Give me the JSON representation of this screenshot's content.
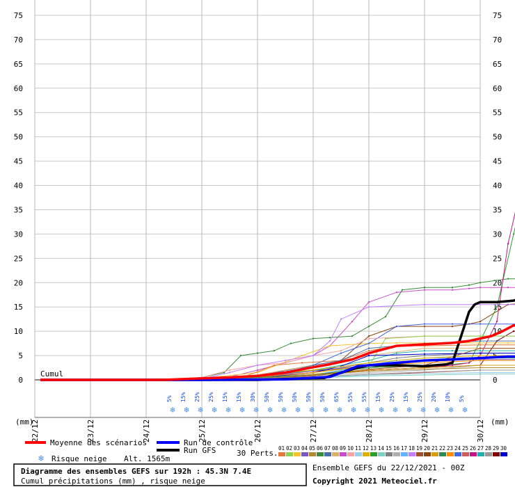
{
  "chart_data": {
    "type": "line",
    "title": "Diagramme des ensembles GEFS sur 192h : 45.3N 7.4E",
    "subtitle": "Cumul précipitations (mm) , risque neige",
    "ylabel": "(mm)",
    "y_ticks": [
      0,
      5,
      10,
      15,
      20,
      25,
      30,
      35,
      40,
      45,
      50,
      55,
      60,
      65,
      70,
      75
    ],
    "ylim": [
      0,
      75
    ],
    "x_labels": [
      "22/12",
      "23/12",
      "24/12",
      "25/12",
      "26/12",
      "27/12",
      "28/12",
      "29/12",
      "30/12"
    ],
    "x_label_left": "(mm)",
    "x_label_right": "(mm)",
    "cumul_label": "Cumul",
    "grid": true,
    "snow_risk": {
      "label": "Risque neige",
      "altitude": "Alt. 1565m",
      "values": [
        "5%",
        "15%",
        "25%",
        "25%",
        "15%",
        "15%",
        "30%",
        "50%",
        "50%",
        "50%",
        "50%",
        "50%",
        "65%",
        "55%",
        "55%",
        "15%",
        "25%",
        "15%",
        "25%",
        "20%",
        "10%",
        "5%"
      ]
    },
    "legend": {
      "mean": "Moyenne des scénarios",
      "control": "Run de contrôle",
      "gfs": "Run GFS",
      "perts": "30 Perts."
    },
    "pert_numbers": [
      "01",
      "02",
      "03",
      "04",
      "05",
      "06",
      "07",
      "08",
      "09",
      "10",
      "11",
      "12",
      "13",
      "14",
      "15",
      "16",
      "17",
      "18",
      "19",
      "20",
      "21",
      "22",
      "23",
      "24",
      "25",
      "26",
      "27",
      "28",
      "29",
      "30"
    ],
    "pert_colors": [
      "#e07b39",
      "#8fd14f",
      "#f2c230",
      "#7e57c2",
      "#b08a2e",
      "#3b8c3b",
      "#4a6ea8",
      "#d9b36c",
      "#c94fc9",
      "#f4a3a3",
      "#9ad0e6",
      "#e0b000",
      "#2f9e2f",
      "#7fd1c1",
      "#808080",
      "#b0b0b0",
      "#66b3ff",
      "#c080ff",
      "#a0522d",
      "#8b4513",
      "#d4a017",
      "#2e8b57",
      "#ff8c00",
      "#4169e1",
      "#cd5c5c",
      "#c71585",
      "#20b2aa",
      "#999999",
      "#800000",
      "#0000cd"
    ],
    "series": [
      {
        "name": "Moyenne des scénarios",
        "color": "#ff0000",
        "width": 3.5,
        "x": [
          0.1,
          2.3,
          3.0,
          3.5,
          4.0,
          4.5,
          5.0,
          5.3,
          5.7,
          6.0,
          6.5,
          7.0,
          7.5,
          7.8,
          8.0,
          8.2,
          8.4,
          8.6,
          9.0
        ],
        "y": [
          0,
          0,
          0.3,
          0.5,
          0.8,
          1.5,
          2.6,
          3.2,
          4.2,
          5.5,
          7.0,
          7.3,
          7.6,
          8.0,
          8.5,
          9.0,
          10.0,
          11.2,
          11.2
        ]
      },
      {
        "name": "Run de contrôle",
        "color": "#0000ff",
        "width": 3.5,
        "x": [
          0.1,
          2.3,
          3.0,
          4.5,
          5.3,
          5.8,
          6.0,
          6.5,
          7.0,
          7.5,
          8.0,
          8.5,
          9.0
        ],
        "y": [
          0,
          0,
          0,
          0.1,
          0.6,
          2.8,
          3.0,
          3.5,
          4.0,
          4.2,
          4.5,
          4.8,
          4.8
        ]
      },
      {
        "name": "Run GFS",
        "color": "#000000",
        "width": 3.5,
        "x": [
          0.1,
          2.3,
          4.0,
          5.2,
          5.8,
          6.0,
          6.5,
          7.0,
          7.4,
          7.5,
          7.8,
          7.9,
          8.0,
          8.3,
          8.6,
          8.8,
          9.0
        ],
        "y": [
          0,
          0,
          0,
          0.4,
          2.5,
          3.0,
          3.0,
          2.8,
          3.2,
          3.5,
          14.0,
          15.5,
          16.0,
          16.0,
          16.3,
          17.0,
          18.0
        ]
      },
      {
        "color": "#c94fc9",
        "width": 1,
        "x": [
          0.1,
          2.3,
          3.0,
          3.5,
          4.0,
          4.5,
          5.0,
          5.3,
          5.7,
          6.0,
          6.5,
          7.0,
          7.5,
          7.8,
          8.0,
          8.5,
          9.0
        ],
        "y": [
          0,
          0,
          0.2,
          0.6,
          2.0,
          3.5,
          5.0,
          7.0,
          12.0,
          16.0,
          18.0,
          18.5,
          18.5,
          18.8,
          19.0,
          19.0,
          19.0
        ]
      },
      {
        "color": "#3b8c3b",
        "width": 1,
        "x": [
          0.1,
          2.3,
          3.0,
          3.4,
          3.7,
          4.0,
          4.3,
          4.6,
          5.0,
          5.3,
          5.7,
          6.0,
          6.3,
          6.6,
          7.0,
          7.5,
          7.8,
          8.0,
          8.5,
          9.0
        ],
        "y": [
          0,
          0,
          0.5,
          1.5,
          5.0,
          5.5,
          6.0,
          7.5,
          8.5,
          8.7,
          9.0,
          11.0,
          13.0,
          18.5,
          19.0,
          19.0,
          19.5,
          20.0,
          20.8,
          20.8
        ]
      },
      {
        "color": "#2f9e2f",
        "width": 1,
        "x": [
          0.1,
          2.3,
          3.0,
          4.0,
          5.0,
          6.0,
          7.0,
          7.5,
          7.8,
          8.0,
          8.3,
          8.6,
          8.9,
          9.0
        ],
        "y": [
          0,
          0,
          0.2,
          1.0,
          2.0,
          2.5,
          3.0,
          3.2,
          3.5,
          8.0,
          15.0,
          30.0,
          43.8,
          43.8
        ]
      },
      {
        "color": "#c71585",
        "width": 1,
        "x": [
          0.1,
          2.3,
          3.0,
          4.0,
          5.0,
          6.0,
          7.0,
          7.5,
          7.8,
          8.0,
          8.3,
          8.5,
          8.7,
          8.8,
          9.0
        ],
        "y": [
          0,
          0,
          0.1,
          0.5,
          1.0,
          2.0,
          2.5,
          3.0,
          3.5,
          5.0,
          12.0,
          28.0,
          38.0,
          46.3,
          46.3
        ]
      },
      {
        "color": "#f2c230",
        "width": 1,
        "x": [
          0.1,
          2.3,
          3.0,
          4.0,
          4.8,
          5.3,
          6.0,
          6.5,
          7.0,
          7.5,
          8.0,
          8.5,
          9.0
        ],
        "y": [
          0,
          0,
          0.3,
          1.5,
          5.0,
          7.0,
          7.5,
          7.6,
          7.6,
          7.6,
          7.6,
          7.6,
          7.6
        ]
      },
      {
        "color": "#8b4513",
        "width": 1,
        "x": [
          0.1,
          2.3,
          3.0,
          4.0,
          5.0,
          5.5,
          6.0,
          6.5,
          7.0,
          7.5,
          7.8,
          8.0,
          8.5,
          9.0
        ],
        "y": [
          0,
          0,
          0.2,
          1.0,
          3.0,
          4.0,
          9.0,
          11.0,
          11.0,
          11.0,
          11.5,
          12.0,
          15.5,
          16.0
        ]
      },
      {
        "color": "#4169e1",
        "width": 1,
        "x": [
          0.1,
          2.3,
          3.0,
          4.0,
          5.0,
          5.5,
          6.0,
          6.5,
          7.0,
          7.5,
          8.0,
          9.0
        ],
        "y": [
          0,
          0,
          0.2,
          0.8,
          3.0,
          5.5,
          7.5,
          11.0,
          11.5,
          11.5,
          11.5,
          11.5
        ]
      },
      {
        "color": "#20b2aa",
        "width": 1,
        "x": [
          0.1,
          2.3,
          3.0,
          4.0,
          5.0,
          6.0,
          6.5,
          7.0,
          7.5,
          8.0,
          9.0
        ],
        "y": [
          0,
          0,
          0.1,
          0.5,
          2.0,
          4.0,
          5.5,
          6.0,
          6.0,
          6.0,
          6.0
        ]
      },
      {
        "color": "#808080",
        "width": 1,
        "x": [
          0.1,
          2.3,
          3.0,
          4.0,
          5.0,
          6.0,
          6.5,
          7.0,
          8.0,
          9.0
        ],
        "y": [
          0,
          0,
          0.1,
          0.4,
          1.5,
          3.5,
          4.5,
          5.0,
          5.5,
          5.5
        ]
      },
      {
        "color": "#e07b39",
        "width": 1,
        "x": [
          0.1,
          2.3,
          3.0,
          3.8,
          4.3,
          4.8,
          5.5,
          6.0,
          6.5,
          7.0,
          8.0,
          9.0
        ],
        "y": [
          0,
          0,
          0.2,
          0.8,
          3.0,
          3.5,
          4.0,
          6.0,
          7.0,
          7.0,
          7.2,
          7.2
        ]
      },
      {
        "color": "#f4a3a3",
        "width": 1,
        "x": [
          0.1,
          2.3,
          3.0,
          3.5,
          4.0,
          4.5,
          5.0,
          5.5,
          6.0,
          7.0,
          8.0,
          9.0
        ],
        "y": [
          0,
          0,
          0.5,
          2.0,
          3.0,
          3.5,
          5.0,
          6.0,
          8.5,
          9.0,
          9.0,
          9.0
        ]
      },
      {
        "color": "#d9b36c",
        "width": 1,
        "x": [
          0.1,
          2.3,
          3.0,
          4.0,
          4.5,
          5.0,
          6.0,
          7.0,
          8.0,
          9.0
        ],
        "y": [
          0,
          0,
          0.3,
          1.0,
          2.0,
          3.0,
          5.0,
          6.5,
          6.5,
          6.5
        ]
      },
      {
        "color": "#66b3ff",
        "width": 1,
        "x": [
          0.1,
          2.3,
          3.0,
          4.0,
          5.0,
          5.5,
          6.0,
          6.5,
          7.0,
          8.0,
          9.0
        ],
        "y": [
          0,
          0,
          0.1,
          0.3,
          1.0,
          2.0,
          3.0,
          4.0,
          4.5,
          4.6,
          4.6
        ]
      },
      {
        "color": "#c080ff",
        "width": 1,
        "x": [
          0.1,
          2.3,
          3.0,
          3.5,
          4.0,
          4.5,
          5.0,
          5.3,
          5.5,
          6.0,
          7.0,
          8.0,
          9.0
        ],
        "y": [
          0,
          0,
          0.2,
          1.5,
          3.0,
          4.0,
          5.0,
          8.0,
          12.5,
          15.0,
          15.5,
          15.5,
          15.5
        ]
      },
      {
        "color": "#800000",
        "width": 1,
        "x": [
          0.1,
          2.3,
          3.0,
          4.0,
          5.0,
          6.0,
          7.0,
          8.0,
          8.3,
          8.6,
          9.0
        ],
        "y": [
          0,
          0,
          0.1,
          0.4,
          1.0,
          2.0,
          2.5,
          3.0,
          8.0,
          10.0,
          10.0
        ]
      },
      {
        "color": "#b0b0b0",
        "width": 1,
        "x": [
          0.1,
          2.3,
          3.0,
          4.0,
          5.0,
          6.0,
          7.0,
          8.0,
          9.0
        ],
        "y": [
          0,
          0,
          0.1,
          0.3,
          0.8,
          1.5,
          2.0,
          3.0,
          3.0
        ]
      },
      {
        "color": "#8fd14f",
        "width": 1,
        "x": [
          0.1,
          2.3,
          3.0,
          4.0,
          5.0,
          6.0,
          6.3,
          7.0,
          8.0,
          9.0
        ],
        "y": [
          0,
          0,
          0.1,
          0.5,
          1.5,
          2.8,
          8.5,
          9.0,
          9.0,
          9.0
        ]
      },
      {
        "color": "#7e57c2",
        "width": 1,
        "x": [
          0.1,
          2.3,
          3.0,
          4.0,
          5.0,
          6.0,
          6.5,
          7.0,
          8.0,
          9.0
        ],
        "y": [
          0,
          0,
          0.2,
          0.6,
          1.8,
          3.0,
          3.5,
          4.0,
          4.2,
          4.2
        ]
      },
      {
        "color": "#cd5c5c",
        "width": 1,
        "x": [
          0.1,
          2.3,
          3.0,
          4.0,
          5.0,
          6.0,
          7.0,
          8.0,
          9.0
        ],
        "y": [
          0,
          0,
          0.1,
          0.2,
          0.6,
          1.0,
          1.5,
          2.0,
          2.0
        ]
      },
      {
        "color": "#0000cd",
        "width": 1,
        "x": [
          0.1,
          2.3,
          3.0,
          4.0,
          5.0,
          5.5,
          6.0,
          7.0,
          8.0,
          9.0
        ],
        "y": [
          0,
          0,
          0.1,
          0.4,
          1.5,
          2.8,
          5.0,
          5.3,
          5.5,
          5.5
        ]
      },
      {
        "color": "#a0522d",
        "width": 1,
        "x": [
          0.1,
          2.3,
          3.0,
          4.0,
          5.0,
          6.0,
          7.0,
          8.0,
          9.0
        ],
        "y": [
          0,
          0,
          0.1,
          0.3,
          0.8,
          2.2,
          3.0,
          6.5,
          6.5
        ]
      },
      {
        "color": "#ff8c00",
        "width": 1,
        "x": [
          0.1,
          2.3,
          3.0,
          4.0,
          5.0,
          6.0,
          7.0,
          8.0,
          9.0
        ],
        "y": [
          0,
          0,
          0.2,
          0.6,
          1.5,
          3.0,
          3.5,
          4.0,
          4.0
        ]
      },
      {
        "color": "#9ad0e6",
        "width": 1,
        "x": [
          0.1,
          2.3,
          3.0,
          4.0,
          5.0,
          6.0,
          7.0,
          8.0,
          9.0
        ],
        "y": [
          0,
          0,
          0.0,
          0.2,
          0.5,
          1.0,
          1.3,
          1.5,
          1.5
        ]
      },
      {
        "color": "#d4a017",
        "width": 1,
        "x": [
          0.1,
          2.3,
          3.0,
          4.0,
          5.0,
          6.0,
          7.0,
          8.0,
          9.0
        ],
        "y": [
          0,
          0,
          0.1,
          0.4,
          1.2,
          2.0,
          2.5,
          3.0,
          3.0
        ]
      },
      {
        "color": "#2e8b57",
        "width": 1,
        "x": [
          0.1,
          2.3,
          3.0,
          4.0,
          5.0,
          6.0,
          7.0,
          8.0,
          9.0
        ],
        "y": [
          0,
          0,
          0.2,
          0.5,
          1.0,
          2.5,
          4.0,
          4.5,
          4.5
        ]
      },
      {
        "color": "#b08a2e",
        "width": 1,
        "x": [
          0.1,
          2.3,
          3.0,
          4.0,
          5.0,
          6.0,
          7.0,
          8.0,
          9.0
        ],
        "y": [
          0,
          0,
          0.1,
          0.3,
          1.0,
          1.8,
          2.2,
          2.5,
          2.5
        ]
      },
      {
        "color": "#4a6ea8",
        "width": 1,
        "x": [
          0.1,
          2.3,
          3.0,
          4.0,
          4.5,
          5.0,
          5.5,
          6.0,
          7.0,
          8.0,
          9.0
        ],
        "y": [
          0,
          0,
          0.2,
          0.8,
          1.5,
          3.0,
          4.0,
          6.5,
          7.5,
          8.0,
          8.0
        ]
      },
      {
        "color": "#7fd1c1",
        "width": 1,
        "x": [
          0.1,
          2.3,
          3.0,
          4.0,
          5.0,
          6.0,
          7.0,
          8.0,
          9.0
        ],
        "y": [
          0,
          0,
          0.1,
          0.2,
          0.4,
          0.8,
          1.0,
          1.2,
          1.2
        ]
      },
      {
        "color": "#e0b000",
        "width": 1,
        "x": [
          0.1,
          2.3,
          3.0,
          4.0,
          5.0,
          6.0,
          7.0,
          8.0,
          9.0
        ],
        "y": [
          0,
          0,
          0.2,
          0.8,
          2.0,
          3.5,
          4.5,
          5.0,
          5.0
        ]
      },
      {
        "color": "#999999",
        "width": 1,
        "x": [
          0.1,
          2.3,
          3.0,
          4.0,
          5.0,
          6.0,
          7.0,
          8.0,
          9.0
        ],
        "y": [
          0,
          0,
          0.1,
          0.3,
          0.6,
          1.2,
          1.6,
          2.0,
          2.0
        ]
      }
    ]
  },
  "footer": {
    "ensemble": "Ensemble GEFS du 22/12/2021 - 00Z",
    "copyright": "Copyright 2021 Meteociel.fr"
  }
}
